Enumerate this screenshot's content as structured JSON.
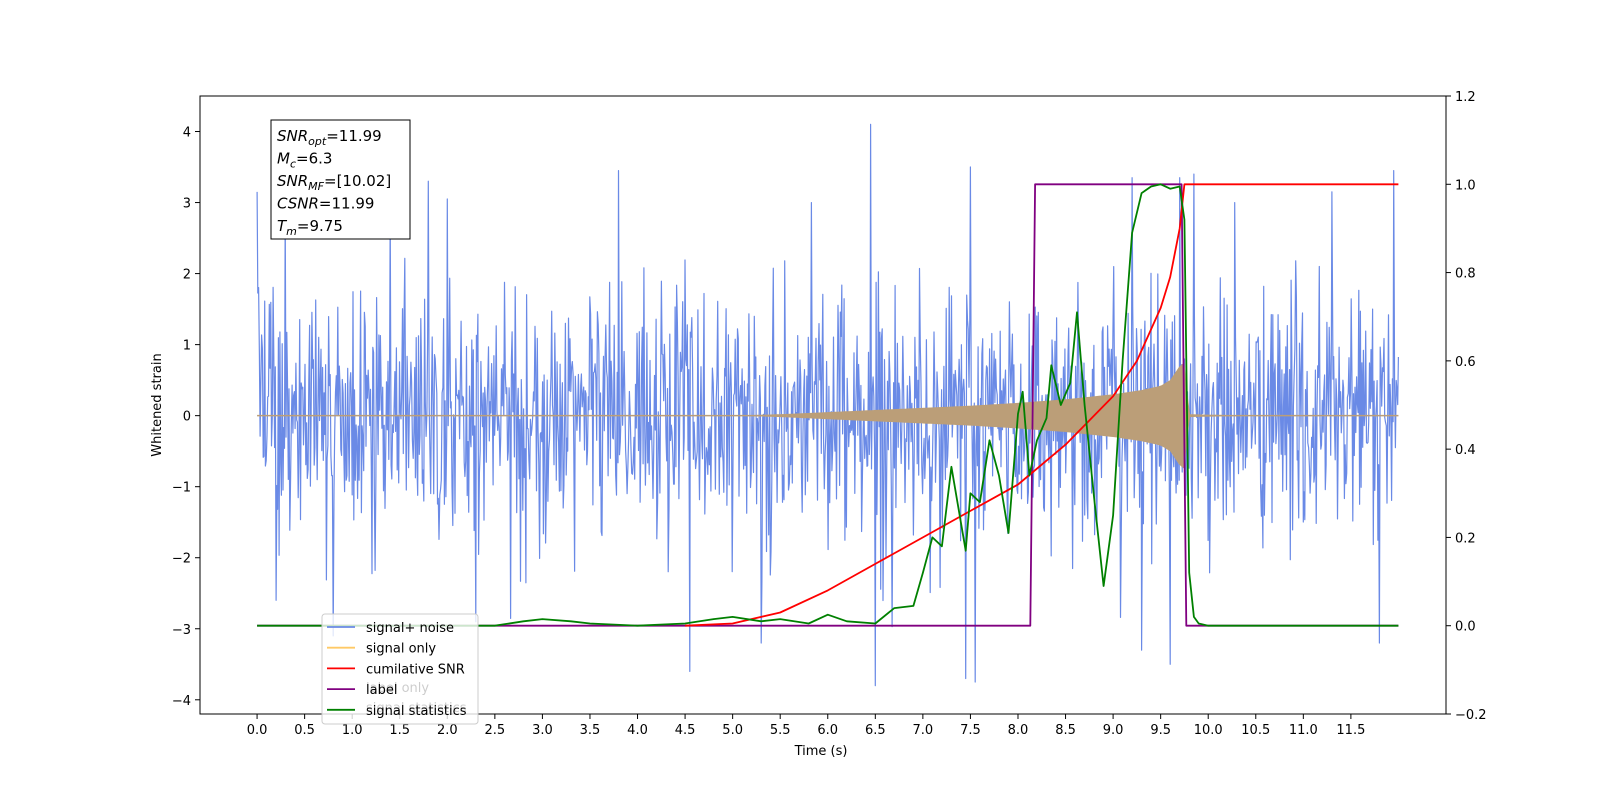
{
  "chart_data": {
    "type": "line",
    "xlabel": "Time (s)",
    "ylabel_left": "Whitened strain",
    "ylabel_right": "",
    "xlim": [
      -0.6,
      12.5
    ],
    "ylim_left": [
      -4.2,
      4.5
    ],
    "ylim_right": [
      -0.2,
      1.2
    ],
    "x_ticks": [
      0.0,
      0.5,
      1.0,
      1.5,
      2.0,
      2.5,
      3.0,
      3.5,
      4.0,
      4.5,
      5.0,
      5.5,
      6.0,
      6.5,
      7.0,
      7.5,
      8.0,
      8.5,
      9.0,
      9.5,
      10.0,
      10.5,
      11.0,
      11.5
    ],
    "x_tick_labels": [
      "0.0",
      "0.5",
      "1.0",
      "1.5",
      "2.0",
      "2.5",
      "3.0",
      "3.5",
      "4.0",
      "4.5",
      "5.0",
      "5.5",
      "6.0",
      "6.5",
      "7.0",
      "7.5",
      "8.0",
      "8.5",
      "9.0",
      "9.5",
      "10.0",
      "10.5",
      "11.0",
      "11.5"
    ],
    "y_left_ticks": [
      -4,
      -3,
      -2,
      -1,
      0,
      1,
      2,
      3,
      4
    ],
    "y_left_tick_labels": [
      "−4",
      "−3",
      "−2",
      "−1",
      "0",
      "1",
      "2",
      "3",
      "4"
    ],
    "y_right_ticks": [
      -0.2,
      0.0,
      0.2,
      0.4,
      0.6,
      0.8,
      1.0,
      1.2
    ],
    "y_right_tick_labels": [
      "−0.2",
      "0.0",
      "0.2",
      "0.4",
      "0.6",
      "0.8",
      "1.0",
      "1.2"
    ],
    "legend": {
      "placement": "lower-left",
      "entries": [
        {
          "label": "signal+ noise",
          "color": "#6a8ae6"
        },
        {
          "label": "signal only",
          "color": "#ffc966"
        },
        {
          "label": "cumilative SNR",
          "color": "#ff0000"
        },
        {
          "label": "label",
          "color": "#800080"
        },
        {
          "label": "signal statistics",
          "color": "#008000"
        }
      ],
      "hidden_entries": [
        "label only",
        "signal statistics"
      ]
    },
    "annotation": {
      "lines": [
        {
          "sym": "SNR",
          "sub": "opt",
          "val": "=11.99"
        },
        {
          "sym": "M",
          "sub": "c",
          "val": "=6.3"
        },
        {
          "sym": "SNR",
          "sub": "MF",
          "val": "=[10.02]"
        },
        {
          "sym": "CSNR",
          "sub": "",
          "val": "=11.99"
        },
        {
          "sym": "T",
          "sub": "m",
          "val": "=9.75"
        }
      ]
    },
    "series": [
      {
        "name": "signal+ noise",
        "axis": "left",
        "color": "#6a8ae6",
        "x_range": [
          0.0,
          12.0
        ],
        "typical_amplitude": 1.6,
        "peak_values": [
          {
            "x": 0.0,
            "y": 3.15
          },
          {
            "x": 0.2,
            "y": -2.6
          },
          {
            "x": 0.8,
            "y": -3.1
          },
          {
            "x": 1.4,
            "y": 2.9
          },
          {
            "x": 1.8,
            "y": 3.3
          },
          {
            "x": 2.0,
            "y": 3.05
          },
          {
            "x": 2.3,
            "y": -2.9
          },
          {
            "x": 3.8,
            "y": 3.45
          },
          {
            "x": 4.55,
            "y": -3.6
          },
          {
            "x": 5.3,
            "y": -3.2
          },
          {
            "x": 6.45,
            "y": 4.1
          },
          {
            "x": 6.5,
            "y": -3.8
          },
          {
            "x": 7.45,
            "y": -3.7
          },
          {
            "x": 7.5,
            "y": 3.5
          },
          {
            "x": 7.55,
            "y": -3.75
          },
          {
            "x": 9.2,
            "y": 3.35
          },
          {
            "x": 9.3,
            "y": -3.3
          },
          {
            "x": 9.6,
            "y": -3.5
          },
          {
            "x": 9.7,
            "y": 3.35
          },
          {
            "x": 9.85,
            "y": 3.4
          },
          {
            "x": 11.3,
            "y": 3.15
          },
          {
            "x": 11.8,
            "y": -3.2
          },
          {
            "x": 11.95,
            "y": 3.45
          }
        ]
      },
      {
        "name": "signal only",
        "axis": "left",
        "color": "#ffc966",
        "fill_color": "#bb9e78",
        "envelope_x": [
          0.0,
          5.0,
          5.5,
          6.0,
          6.5,
          7.0,
          7.5,
          8.0,
          8.5,
          9.0,
          9.3,
          9.5,
          9.6,
          9.7,
          9.75,
          9.8,
          10.5,
          12.0
        ],
        "envelope_y": [
          0.0,
          0.0,
          0.02,
          0.05,
          0.08,
          0.11,
          0.14,
          0.18,
          0.23,
          0.3,
          0.36,
          0.42,
          0.5,
          0.7,
          0.75,
          0.02,
          0.0,
          0.0
        ]
      },
      {
        "name": "cumilative SNR",
        "axis": "right",
        "color": "#ff0000",
        "x": [
          4.5,
          5.0,
          5.5,
          6.0,
          6.5,
          7.0,
          7.5,
          8.0,
          8.5,
          9.0,
          9.25,
          9.5,
          9.6,
          9.7,
          9.75,
          10.0,
          11.0,
          12.0
        ],
        "y": [
          0.0,
          0.005,
          0.03,
          0.08,
          0.14,
          0.2,
          0.26,
          0.32,
          0.41,
          0.52,
          0.6,
          0.72,
          0.79,
          0.9,
          1.0,
          1.0,
          1.0,
          1.0
        ]
      },
      {
        "name": "label",
        "axis": "right",
        "color": "#800080",
        "x": [
          0.0,
          8.13,
          8.18,
          9.72,
          9.77,
          12.0
        ],
        "y": [
          0.0,
          0.0,
          1.0,
          1.0,
          0.0,
          0.0
        ]
      },
      {
        "name": "signal statistics",
        "axis": "right",
        "color": "#008000",
        "x": [
          0.0,
          2.5,
          2.8,
          3.0,
          3.3,
          3.5,
          4.0,
          4.5,
          4.8,
          5.0,
          5.3,
          5.5,
          5.8,
          6.0,
          6.2,
          6.5,
          6.7,
          6.9,
          7.0,
          7.1,
          7.2,
          7.3,
          7.45,
          7.5,
          7.6,
          7.7,
          7.8,
          7.9,
          8.0,
          8.05,
          8.12,
          8.2,
          8.3,
          8.35,
          8.45,
          8.55,
          8.62,
          8.7,
          8.8,
          8.9,
          9.0,
          9.1,
          9.2,
          9.3,
          9.4,
          9.5,
          9.6,
          9.7,
          9.75,
          9.8,
          9.85,
          9.9,
          10.0,
          12.0
        ],
        "y": [
          0.0,
          0.0,
          0.01,
          0.015,
          0.01,
          0.005,
          0.0,
          0.005,
          0.015,
          0.02,
          0.01,
          0.015,
          0.005,
          0.025,
          0.01,
          0.005,
          0.04,
          0.045,
          0.12,
          0.2,
          0.18,
          0.36,
          0.17,
          0.3,
          0.28,
          0.42,
          0.34,
          0.21,
          0.48,
          0.53,
          0.34,
          0.42,
          0.47,
          0.59,
          0.5,
          0.55,
          0.71,
          0.5,
          0.29,
          0.09,
          0.25,
          0.6,
          0.89,
          0.98,
          0.995,
          1.0,
          0.99,
          0.995,
          0.92,
          0.12,
          0.02,
          0.005,
          0.0,
          0.0
        ]
      }
    ]
  }
}
